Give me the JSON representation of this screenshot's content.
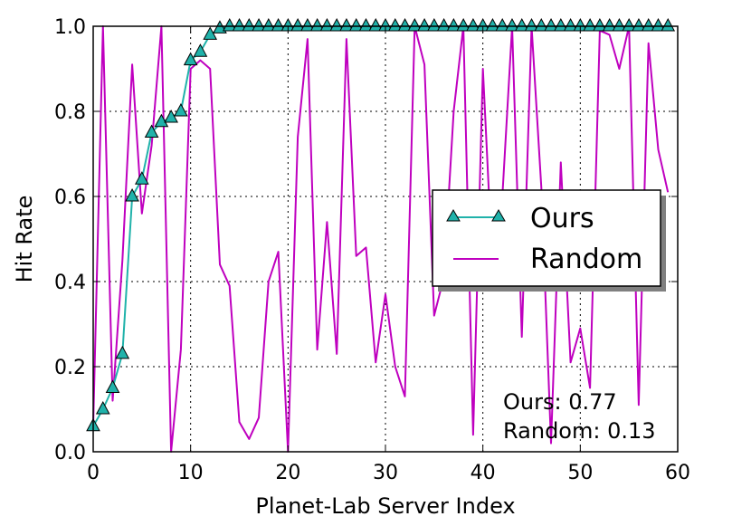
{
  "chart_data": {
    "type": "line",
    "title": "",
    "xlabel": "Planet-Lab Server Index",
    "ylabel": "Hit Rate",
    "xlim": [
      0,
      60
    ],
    "ylim": [
      0,
      1.0
    ],
    "x_ticks": [
      "0",
      "10",
      "20",
      "30",
      "40",
      "50",
      "60"
    ],
    "y_ticks": [
      "0.0",
      "0.2",
      "0.4",
      "0.6",
      "0.8",
      "1.0"
    ],
    "grid": true,
    "legend_position": "center-right",
    "series": [
      {
        "name": "Ours",
        "color": "#20b2aa",
        "marker": "triangle",
        "x": [
          0,
          1,
          2,
          3,
          4,
          5,
          6,
          7,
          8,
          9,
          10,
          11,
          12,
          13,
          14,
          15,
          16,
          17,
          18,
          19,
          20,
          21,
          22,
          23,
          24,
          25,
          26,
          27,
          28,
          29,
          30,
          31,
          32,
          33,
          34,
          35,
          36,
          37,
          38,
          39,
          40,
          41,
          42,
          43,
          44,
          45,
          46,
          47,
          48,
          49,
          50,
          51,
          52,
          53,
          54,
          55,
          56,
          57,
          58,
          59
        ],
        "y": [
          0.06,
          0.1,
          0.15,
          0.23,
          0.6,
          0.64,
          0.75,
          0.775,
          0.785,
          0.8,
          0.92,
          0.94,
          0.98,
          0.995,
          1,
          1,
          1,
          1,
          1,
          1,
          1,
          1,
          1,
          1,
          1,
          1,
          1,
          1,
          1,
          1,
          1,
          1,
          1,
          1,
          1,
          1,
          1,
          1,
          1,
          1,
          1,
          1,
          1,
          1,
          1,
          1,
          1,
          1,
          1,
          1,
          1,
          1,
          1,
          1,
          1,
          1,
          1,
          1,
          1,
          1
        ]
      },
      {
        "name": "Random",
        "color": "#bf00bf",
        "marker": "none",
        "x": [
          0,
          1,
          2,
          3,
          4,
          5,
          6,
          7,
          8,
          9,
          10,
          11,
          12,
          13,
          14,
          15,
          16,
          17,
          18,
          19,
          20,
          21,
          22,
          23,
          24,
          25,
          26,
          27,
          28,
          29,
          30,
          31,
          32,
          33,
          34,
          35,
          36,
          37,
          38,
          39,
          40,
          41,
          42,
          43,
          44,
          45,
          46,
          47,
          48,
          49,
          50,
          51,
          52,
          53,
          54,
          55,
          56,
          57,
          58,
          59
        ],
        "y": [
          0.06,
          1.0,
          0.12,
          0.45,
          0.91,
          0.56,
          0.72,
          1.0,
          0.0,
          0.24,
          0.9,
          0.92,
          0.9,
          0.44,
          0.39,
          0.07,
          0.03,
          0.08,
          0.4,
          0.47,
          0.0,
          0.74,
          0.97,
          0.24,
          0.54,
          0.23,
          0.97,
          0.46,
          0.48,
          0.21,
          0.37,
          0.2,
          0.13,
          1.0,
          0.91,
          0.32,
          0.41,
          0.8,
          1.0,
          0.04,
          0.9,
          0.43,
          0.6,
          1.0,
          0.27,
          1.0,
          0.62,
          0.02,
          0.68,
          0.21,
          0.29,
          0.15,
          0.99,
          0.98,
          0.9,
          1.0,
          0.11,
          0.96,
          0.71,
          0.61
        ]
      }
    ],
    "annotations": [
      "Ours: 0.77",
      "Random: 0.13"
    ]
  }
}
